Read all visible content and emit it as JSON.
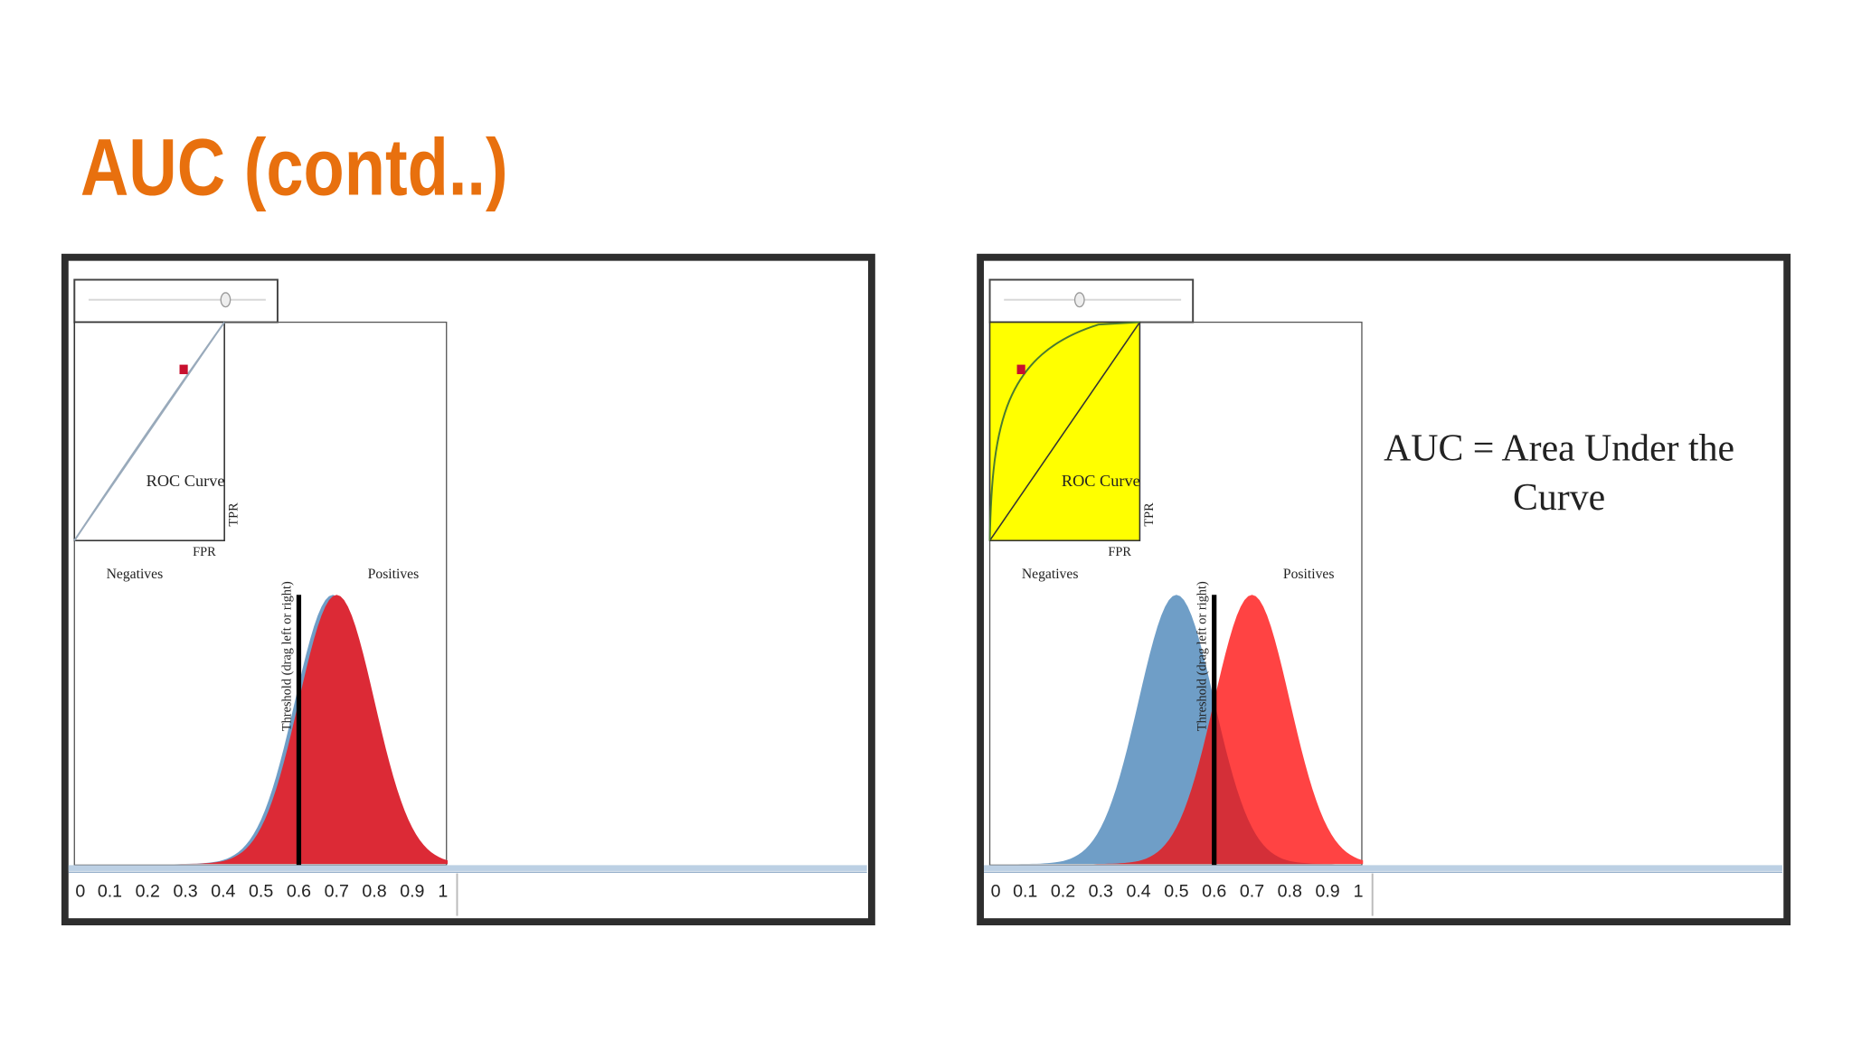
{
  "title": "AUC (contd..)",
  "panels": [
    {
      "roc_label": "ROC Curve",
      "tpr_label": "TPR",
      "fpr_label": "FPR",
      "negatives_label": "Negatives",
      "positives_label": "Positives",
      "threshold_label": "Threshold (drag left or right)",
      "axis_ticks": [
        0,
        0.1,
        0.2,
        0.3,
        0.4,
        0.5,
        0.6,
        0.7,
        0.8,
        0.9,
        1
      ]
    },
    {
      "roc_label": "ROC Curve",
      "tpr_label": "TPR",
      "fpr_label": "FPR",
      "negatives_label": "Negatives",
      "positives_label": "Positives",
      "threshold_label": "Threshold (drag left or right)",
      "axis_ticks": [
        0,
        0.1,
        0.2,
        0.3,
        0.4,
        0.5,
        0.6,
        0.7,
        0.8,
        0.9,
        1
      ],
      "caption_lines": [
        "AUC = Area Under the",
        "Curve"
      ]
    }
  ]
}
